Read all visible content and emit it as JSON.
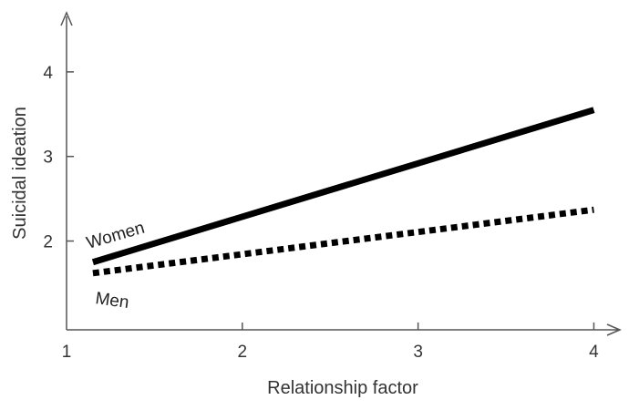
{
  "chart_data": {
    "type": "line",
    "title": "",
    "xlabel": "Relationship factor",
    "ylabel": "Suicidal ideation",
    "xlim": [
      1,
      4.2
    ],
    "ylim": [
      0.95,
      4.85
    ],
    "x_ticks": [
      "1",
      "2",
      "3",
      "4"
    ],
    "y_ticks": [
      "2",
      "3",
      "4"
    ],
    "grid": false,
    "legend": "inline labels",
    "series": [
      {
        "name": "Women",
        "style": "solid",
        "color": "#000000",
        "x": [
          1.15,
          4.0
        ],
        "y": [
          1.75,
          3.55
        ]
      },
      {
        "name": "Men",
        "style": "dotted",
        "color": "#000000",
        "x": [
          1.15,
          4.0
        ],
        "y": [
          1.62,
          2.37
        ]
      }
    ]
  }
}
